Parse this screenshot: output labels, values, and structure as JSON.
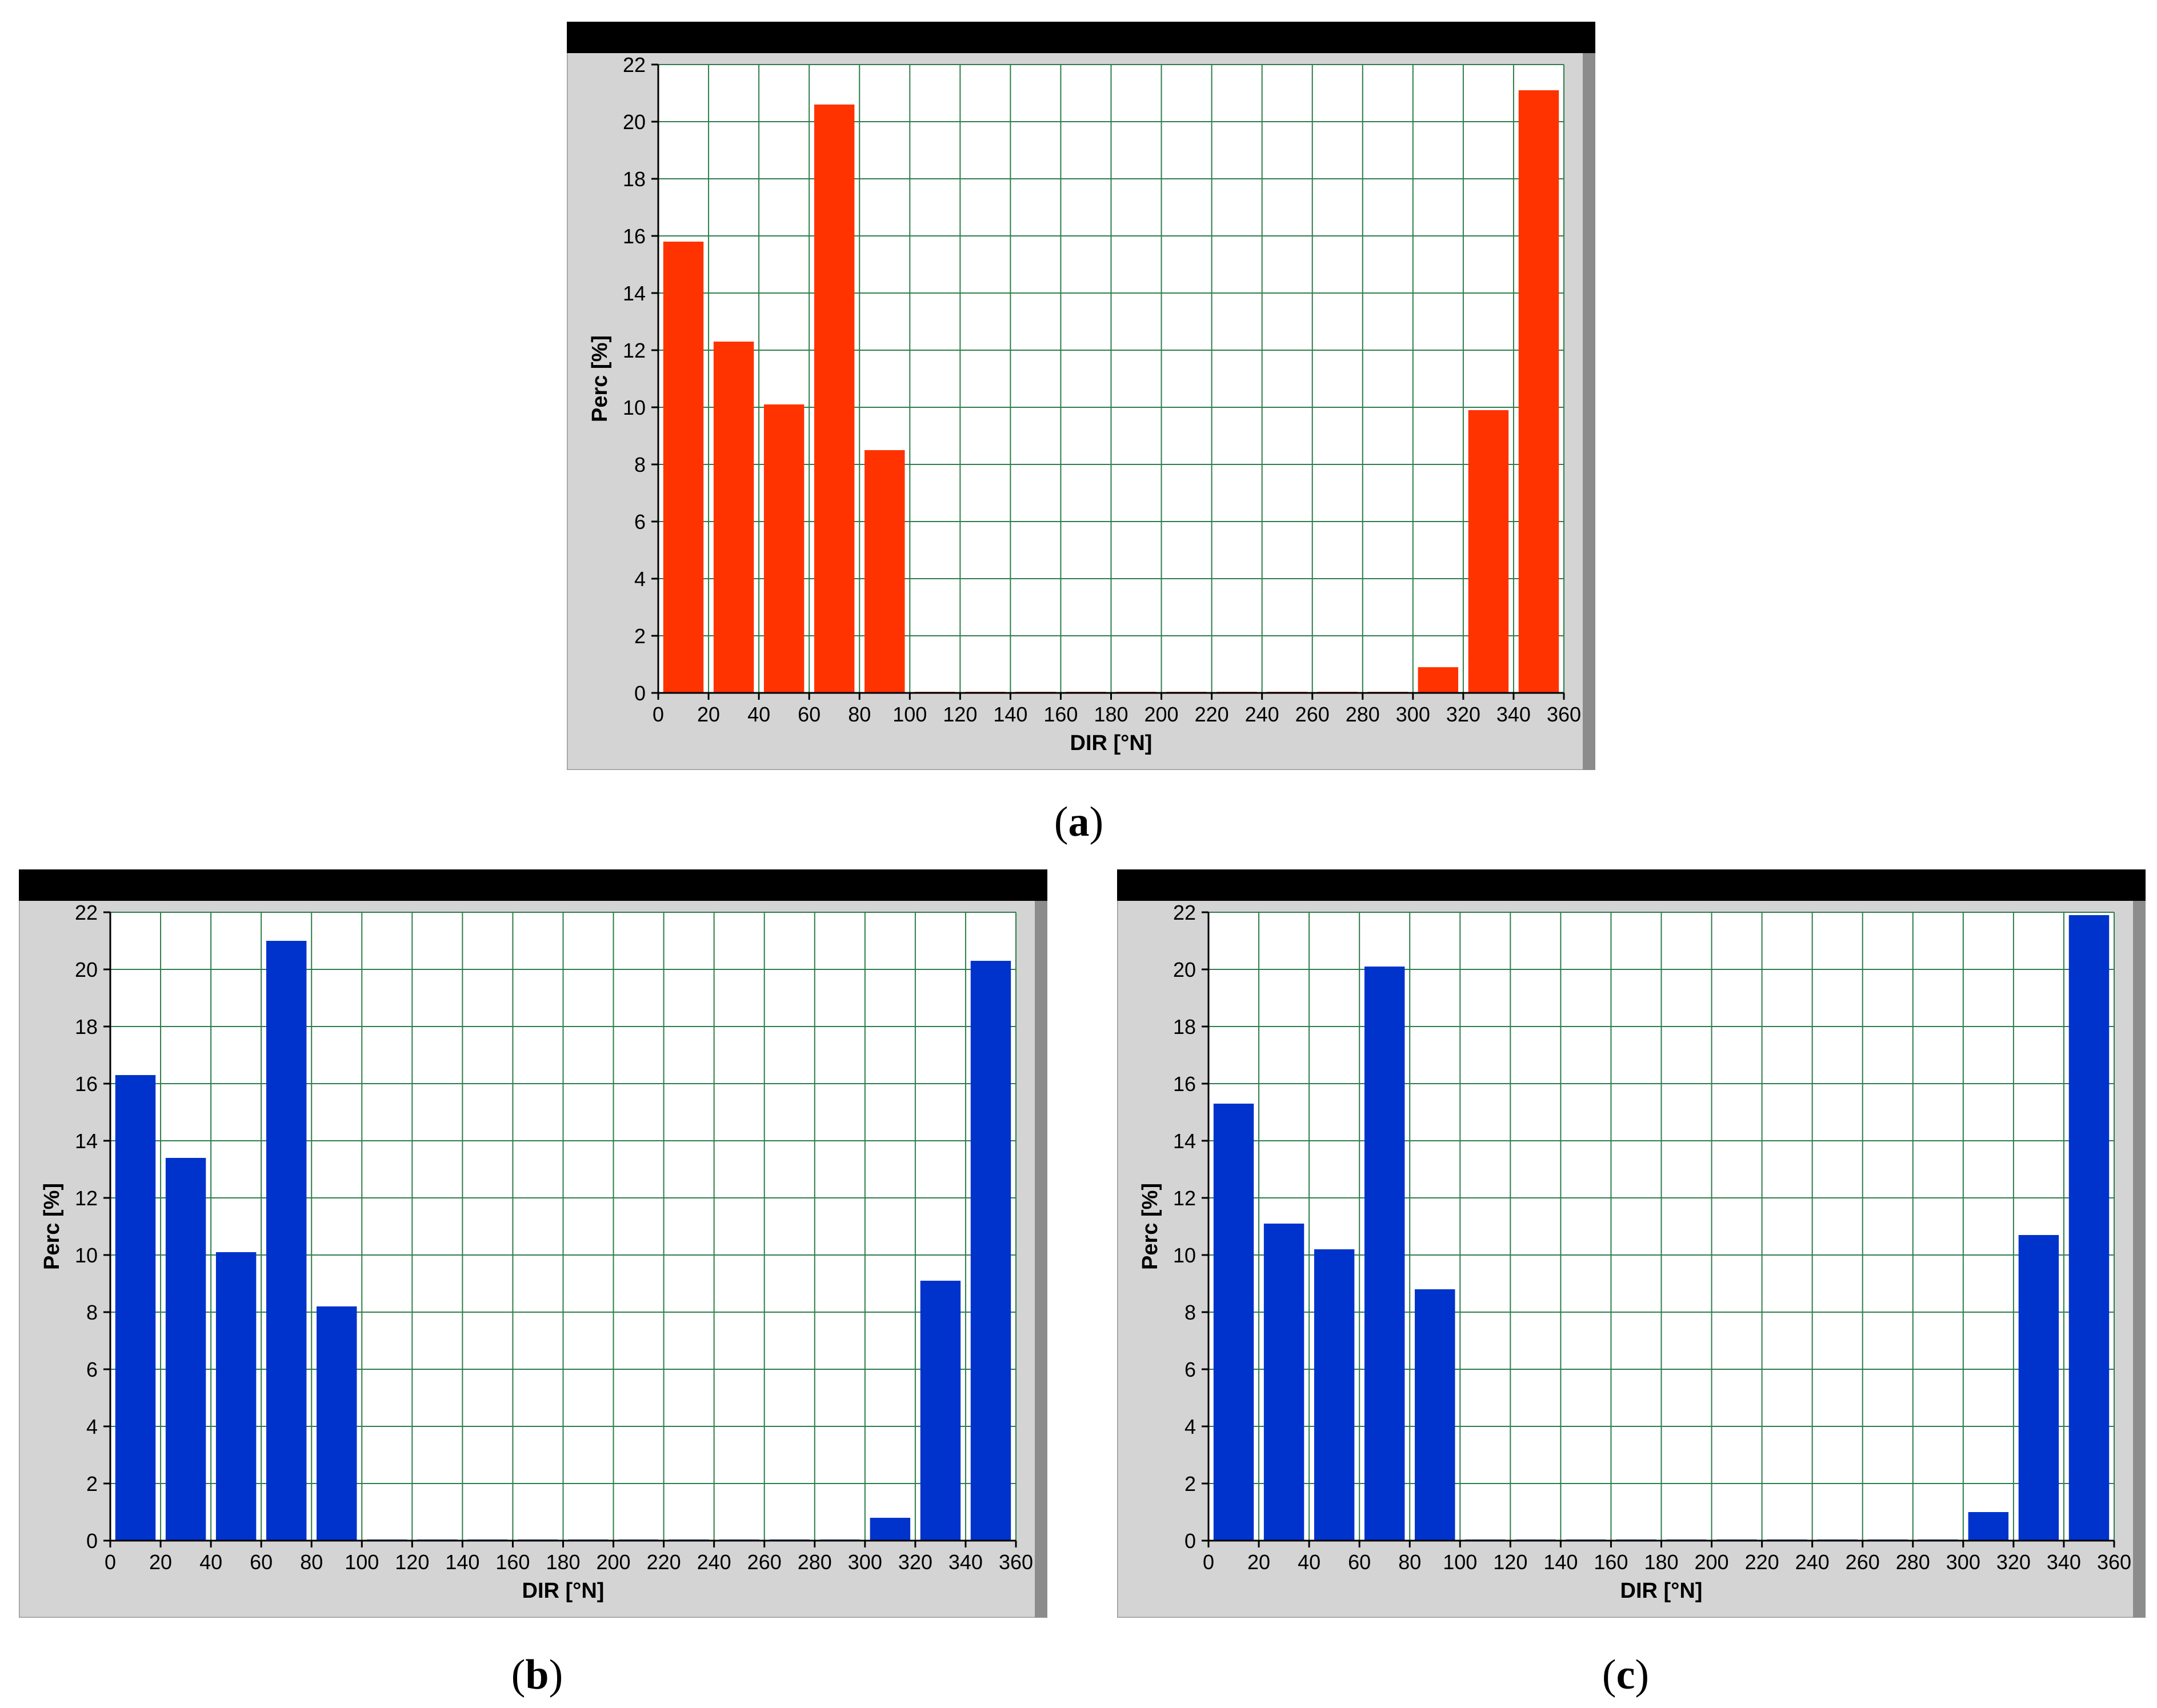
{
  "chart_data": [
    {
      "type": "bar",
      "panel_label": "a",
      "bar_color": "#ff3300",
      "xlabel": "DIR [°N]",
      "ylabel": "Perc [%]",
      "xlim": [
        0,
        360
      ],
      "ylim": [
        0,
        22
      ],
      "x_ticks": [
        0,
        20,
        40,
        60,
        80,
        100,
        120,
        140,
        160,
        180,
        200,
        220,
        240,
        260,
        280,
        300,
        320,
        340,
        360
      ],
      "y_ticks": [
        0,
        2,
        4,
        6,
        8,
        10,
        12,
        14,
        16,
        18,
        20,
        22
      ],
      "grid": true,
      "x": [
        10,
        30,
        50,
        70,
        90,
        110,
        130,
        150,
        170,
        190,
        210,
        230,
        250,
        270,
        290,
        310,
        330,
        350
      ],
      "values": [
        15.8,
        12.3,
        10.1,
        20.6,
        8.5,
        0,
        0,
        0,
        0,
        0,
        0,
        0,
        0,
        0,
        0,
        0.9,
        9.9,
        21.1
      ]
    },
    {
      "type": "bar",
      "panel_label": "b",
      "bar_color": "#0033cc",
      "xlabel": "DIR [°N]",
      "ylabel": "Perc [%]",
      "xlim": [
        0,
        360
      ],
      "ylim": [
        0,
        22
      ],
      "x_ticks": [
        0,
        20,
        40,
        60,
        80,
        100,
        120,
        140,
        160,
        180,
        200,
        220,
        240,
        260,
        280,
        300,
        320,
        340,
        360
      ],
      "y_ticks": [
        0,
        2,
        4,
        6,
        8,
        10,
        12,
        14,
        16,
        18,
        20,
        22
      ],
      "grid": true,
      "x": [
        10,
        30,
        50,
        70,
        90,
        110,
        130,
        150,
        170,
        190,
        210,
        230,
        250,
        270,
        290,
        310,
        330,
        350
      ],
      "values": [
        16.3,
        13.4,
        10.1,
        21.0,
        8.2,
        0,
        0,
        0,
        0,
        0,
        0,
        0,
        0,
        0,
        0,
        0.8,
        9.1,
        20.3
      ]
    },
    {
      "type": "bar",
      "panel_label": "c",
      "bar_color": "#0033cc",
      "xlabel": "DIR [°N]",
      "ylabel": "Perc [%]",
      "xlim": [
        0,
        360
      ],
      "ylim": [
        0,
        22
      ],
      "x_ticks": [
        0,
        20,
        40,
        60,
        80,
        100,
        120,
        140,
        160,
        180,
        200,
        220,
        240,
        260,
        280,
        300,
        320,
        340,
        360
      ],
      "y_ticks": [
        0,
        2,
        4,
        6,
        8,
        10,
        12,
        14,
        16,
        18,
        20,
        22
      ],
      "grid": true,
      "x": [
        10,
        30,
        50,
        70,
        90,
        110,
        130,
        150,
        170,
        190,
        210,
        230,
        250,
        270,
        290,
        310,
        330,
        350
      ],
      "values": [
        15.3,
        11.1,
        10.2,
        20.1,
        8.8,
        0,
        0,
        0,
        0,
        0,
        0,
        0,
        0,
        0,
        0,
        1.0,
        10.7,
        21.9
      ]
    }
  ]
}
